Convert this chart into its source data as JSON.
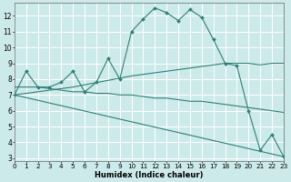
{
  "xlabel": "Humidex (Indice chaleur)",
  "xlim": [
    0,
    23
  ],
  "ylim": [
    2.8,
    12.8
  ],
  "yticks": [
    3,
    4,
    5,
    6,
    7,
    8,
    9,
    10,
    11,
    12
  ],
  "xticks": [
    0,
    1,
    2,
    3,
    4,
    5,
    6,
    7,
    8,
    9,
    10,
    11,
    12,
    13,
    14,
    15,
    16,
    17,
    18,
    19,
    20,
    21,
    22,
    23
  ],
  "background_color": "#cdeaea",
  "grid_color": "#b0d8d8",
  "line_color": "#2e7f74",
  "series": [
    {
      "x": [
        0,
        1,
        2,
        3,
        4,
        5,
        6,
        7,
        8,
        9,
        10,
        11,
        12,
        13,
        14,
        15,
        16,
        17,
        18,
        19,
        20,
        21,
        22,
        23
      ],
      "y": [
        7.0,
        8.5,
        7.5,
        7.5,
        7.8,
        8.5,
        7.2,
        7.8,
        9.3,
        8.0,
        11.0,
        11.8,
        12.5,
        12.2,
        11.7,
        12.4,
        11.9,
        10.5,
        9.0,
        8.85,
        6.0,
        3.5,
        4.5,
        3.1
      ],
      "markers": true
    },
    {
      "x": [
        0,
        5,
        10,
        11,
        12,
        13,
        14,
        15,
        16,
        17,
        18,
        19,
        20,
        21,
        22,
        23
      ],
      "y": [
        7.0,
        7.5,
        8.2,
        8.3,
        8.4,
        8.5,
        8.6,
        8.7,
        8.8,
        8.9,
        9.0,
        9.0,
        9.0,
        8.9,
        9.0,
        9.0
      ],
      "markers": false
    },
    {
      "x": [
        0,
        1,
        2,
        3,
        4,
        5,
        6,
        7,
        8,
        9,
        10,
        11,
        12,
        13,
        14,
        15,
        16,
        17,
        18,
        19,
        20,
        21,
        22,
        23
      ],
      "y": [
        7.5,
        7.5,
        7.5,
        7.4,
        7.3,
        7.2,
        7.2,
        7.1,
        7.1,
        7.0,
        7.0,
        6.9,
        6.8,
        6.8,
        6.7,
        6.6,
        6.6,
        6.5,
        6.4,
        6.3,
        6.2,
        6.1,
        6.0,
        5.9
      ],
      "markers": false
    },
    {
      "x": [
        0,
        23
      ],
      "y": [
        7.0,
        3.1
      ],
      "markers": false
    }
  ]
}
